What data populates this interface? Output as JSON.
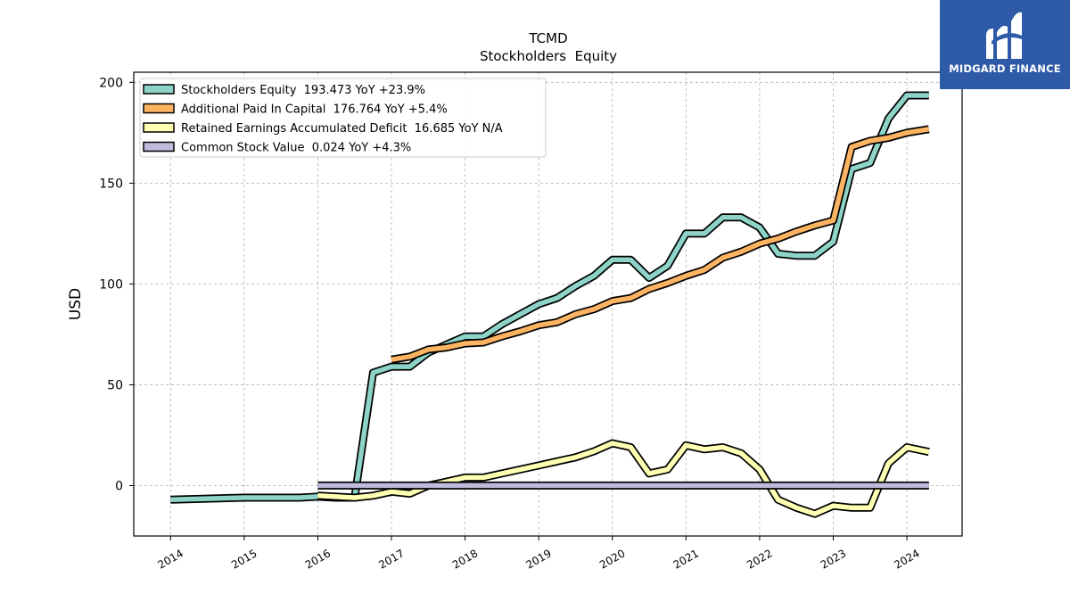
{
  "chart_data": {
    "type": "line",
    "title": "TCMD",
    "subtitle": "Stockholders  Equity",
    "ylabel": "USD",
    "xlabel": "",
    "ylim": [
      -25,
      205
    ],
    "xlim": [
      2013.5,
      2024.75
    ],
    "yticks": [
      0,
      50,
      100,
      150,
      200
    ],
    "xticks": [
      2014,
      2015,
      2016,
      2017,
      2018,
      2019,
      2020,
      2021,
      2022,
      2023,
      2024
    ],
    "grid": true,
    "legend_position": "top-left",
    "series": [
      {
        "name": "Stockholders Equity  193.473 YoY +23.9%",
        "color": "#8dd3c7",
        "x": [
          2014.0,
          2015.0,
          2015.75,
          2016.0,
          2016.25,
          2016.5,
          2016.75,
          2017.0,
          2017.25,
          2017.5,
          2017.75,
          2018.0,
          2018.25,
          2018.5,
          2018.75,
          2019.0,
          2019.25,
          2019.5,
          2019.75,
          2020.0,
          2020.25,
          2020.5,
          2020.75,
          2021.0,
          2021.25,
          2021.5,
          2021.75,
          2022.0,
          2022.25,
          2022.5,
          2022.75,
          2023.0,
          2023.25,
          2023.5,
          2023.75,
          2024.0,
          2024.3
        ],
        "y": [
          -7,
          -6,
          -6,
          -5.5,
          -6,
          -6,
          56,
          59,
          59,
          66,
          70,
          74,
          74,
          80,
          85,
          90,
          93,
          99,
          104,
          112,
          112,
          103,
          109,
          125,
          125,
          133,
          133,
          128,
          115,
          114,
          114,
          121,
          157,
          160,
          182,
          193.5,
          193.5
        ]
      },
      {
        "name": "Additional Paid In Capital  176.764 YoY +5.4%",
        "color": "#fdb462",
        "x": [
          2017.0,
          2017.25,
          2017.5,
          2017.75,
          2018.0,
          2018.25,
          2018.5,
          2018.75,
          2019.0,
          2019.25,
          2019.5,
          2019.75,
          2020.0,
          2020.25,
          2020.5,
          2020.75,
          2021.0,
          2021.25,
          2021.5,
          2021.75,
          2022.0,
          2022.25,
          2022.5,
          2022.75,
          2023.0,
          2023.25,
          2023.5,
          2023.75,
          2024.0,
          2024.3
        ],
        "y": [
          62.5,
          64,
          67.5,
          68.5,
          70.5,
          71,
          74,
          76.5,
          79.5,
          81,
          85,
          87.5,
          91.5,
          93,
          97.5,
          100.5,
          104,
          107,
          113,
          116,
          120,
          122.5,
          126,
          129,
          131.5,
          168,
          171,
          172.5,
          175,
          176.8
        ]
      },
      {
        "name": "Retained Earnings Accumulated Deficit  16.685 YoY N/A",
        "color": "#ffffb3",
        "x": [
          2016.0,
          2016.5,
          2016.75,
          2017.0,
          2017.25,
          2017.5,
          2017.75,
          2018.0,
          2018.25,
          2018.5,
          2018.75,
          2019.0,
          2019.25,
          2019.5,
          2019.75,
          2020.0,
          2020.25,
          2020.5,
          2020.75,
          2021.0,
          2021.25,
          2021.5,
          2021.75,
          2022.0,
          2022.25,
          2022.5,
          2022.75,
          2023.0,
          2023.25,
          2023.5,
          2023.75,
          2024.0,
          2024.3
        ],
        "y": [
          -5,
          -6,
          -5,
          -3,
          -4,
          0,
          2,
          4,
          4,
          6,
          8,
          10,
          12,
          14,
          17,
          21,
          19,
          6,
          8,
          20,
          18,
          19,
          16,
          8,
          -7,
          -11,
          -14,
          -10,
          -11,
          -11,
          11,
          19,
          16.7
        ]
      },
      {
        "name": "Common Stock Value  0.024 YoY +4.3%",
        "color": "#bebada",
        "x": [
          2016.0,
          2024.3
        ],
        "y": [
          0.02,
          0.024
        ]
      }
    ]
  },
  "logo": {
    "text": "MIDGARD FINANCE",
    "color": "#2f5aa8"
  }
}
